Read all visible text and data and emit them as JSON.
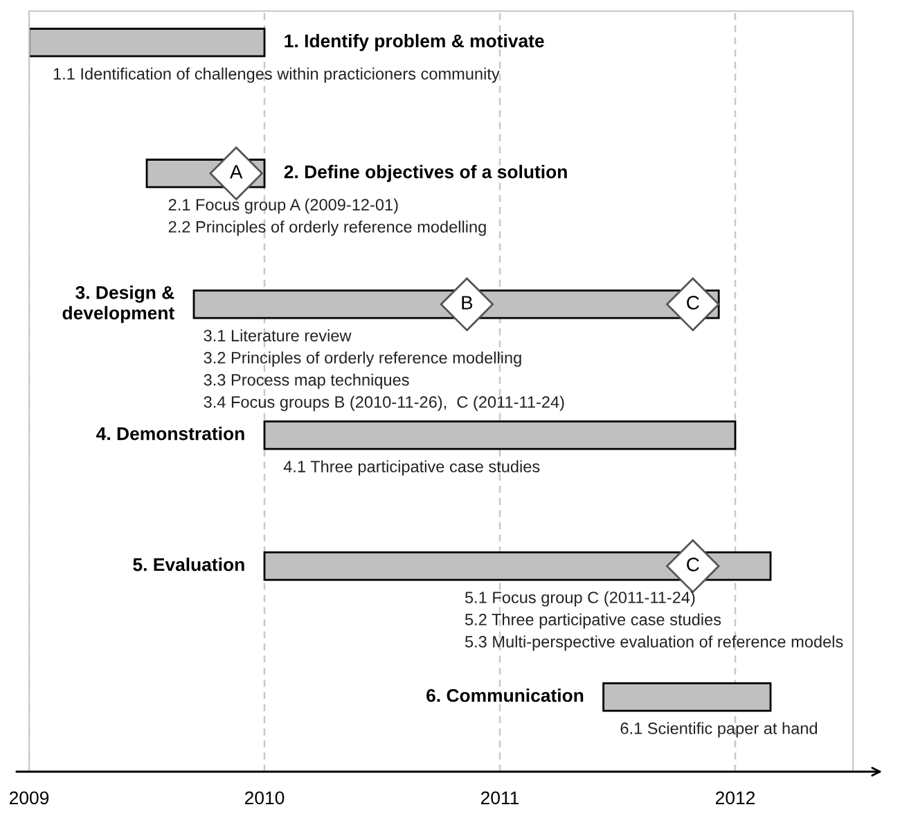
{
  "chart_data": {
    "type": "bar",
    "orientation": "horizontal",
    "categories": [
      "1. Identify problem & motivate",
      "2. Define objectives of a solution",
      "3. Design &\ndevelopment",
      "4. Demonstration",
      "5. Evaluation",
      "6. Communication"
    ],
    "series": [
      {
        "values": [
          1.0,
          0.5,
          2.23,
          2.0,
          2.15,
          0.71
        ],
        "base": [
          2009.0,
          2009.5,
          2009.7,
          2010.0,
          2010.0,
          2011.44
        ],
        "color": "#c0c0c0"
      },
      {
        "type": "scatter",
        "values": [
          null,
          2009.88,
          2010.86,
          null,
          null,
          null
        ],
        "value_labels": [
          null,
          "A",
          "B",
          null,
          null,
          null
        ],
        "color": "#ffffff",
        "marker": "diamond"
      },
      {
        "type": "scatter",
        "values": [
          null,
          null,
          2011.82,
          null,
          2011.82,
          null
        ],
        "value_labels": [
          null,
          null,
          "C",
          null,
          "C",
          null
        ],
        "color": "#ffffff",
        "marker": "diamond"
      }
    ],
    "xlim": [
      2009,
      2012.5
    ],
    "xticks": [
      2009,
      2010,
      2011,
      2012
    ],
    "grid": "x",
    "tick_labels": "x",
    "annotations": [
      "1.1 Identification of challenges within practicioners community",
      "2.1 Focus group A (2009-12-01)",
      "2.2 Principles of orderly reference modelling",
      "3.1 Literature review",
      "3.2 Principles of orderly reference modelling",
      "3.3 Process map techniques",
      "3.4 Focus groups B (2010-11-26),  C (2011-11-24)",
      "4.1 Three participative case studies",
      "5.1 Focus group C (2011-11-24)",
      "5.2 Three participative case studies",
      "5.3 Multi-perspective evaluation of reference models",
      "6.1 Scientific paper at hand"
    ]
  }
}
